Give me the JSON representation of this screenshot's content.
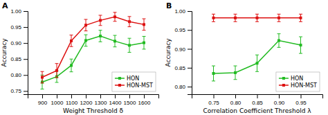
{
  "chart_data": [
    {
      "type": "line",
      "title": "A",
      "xlabel": "Weight Threshold δ",
      "ylabel": "Accuracy",
      "x": [
        900,
        1000,
        1100,
        1200,
        1300,
        1400,
        1500,
        1600
      ],
      "series": [
        {
          "name": "HON",
          "color": "#22bb22",
          "marker": "square",
          "values": [
            0.778,
            0.795,
            0.83,
            0.908,
            0.922,
            0.906,
            0.893,
            0.901
          ],
          "errors": [
            0.022,
            0.018,
            0.02,
            0.018,
            0.018,
            0.018,
            0.022,
            0.02
          ]
        },
        {
          "name": "HON-MST",
          "color": "#dd1111",
          "marker": "square",
          "values": [
            0.793,
            0.814,
            0.907,
            0.956,
            0.971,
            0.982,
            0.967,
            0.958
          ],
          "errors": [
            0.018,
            0.022,
            0.018,
            0.018,
            0.016,
            0.014,
            0.016,
            0.018
          ]
        }
      ],
      "xlim": [
        800,
        1700
      ],
      "ylim": [
        0.74,
        1.0
      ],
      "xticks": [
        900,
        1000,
        1100,
        1200,
        1300,
        1400,
        1500,
        1600
      ],
      "yticks": [
        0.75,
        {
          "value": 0.8,
          "label": "0.80"
        },
        0.85,
        {
          "value": 0.9,
          "label": "0.90"
        },
        0.95,
        {
          "value": 1.0,
          "label": "1.00"
        }
      ],
      "legend": "lower right"
    },
    {
      "type": "line",
      "title": "B",
      "xlabel": "Correlation Coefficient Threshold λ",
      "ylabel": "Accuracy",
      "x": [
        0.75,
        0.8,
        0.85,
        0.9,
        0.95
      ],
      "series": [
        {
          "name": "HON",
          "color": "#22bb22",
          "marker": "square",
          "values": [
            0.835,
            0.837,
            0.862,
            0.922,
            0.91
          ],
          "errors": [
            0.02,
            0.018,
            0.022,
            0.018,
            0.022
          ]
        },
        {
          "name": "HON-MST",
          "color": "#dd1111",
          "marker": "square",
          "values": [
            0.982,
            0.982,
            0.982,
            0.982,
            0.982
          ],
          "errors": [
            0.01,
            0.01,
            0.01,
            0.01,
            0.01
          ]
        }
      ],
      "xlim": [
        0.7,
        1.0
      ],
      "ylim": [
        0.78,
        1.0
      ],
      "xticks": [
        0.75,
        {
          "value": 0.8,
          "label": "0.80"
        },
        0.85,
        {
          "value": 0.9,
          "label": "0.90"
        },
        0.95
      ],
      "yticks": [
        {
          "value": 0.8,
          "label": "0.80"
        },
        0.85,
        {
          "value": 0.9,
          "label": "0.90"
        },
        0.95,
        {
          "value": 1.0,
          "label": "1.00"
        }
      ],
      "legend": "lower right"
    }
  ]
}
